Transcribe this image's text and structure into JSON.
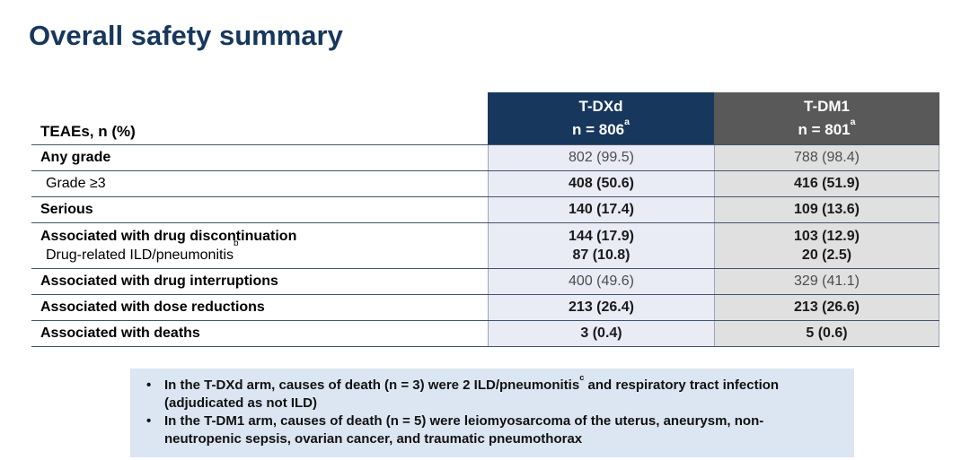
{
  "colors": {
    "navy": "#17375d",
    "header-gray": "#595959",
    "tdxd-bg": "#e9ebf5",
    "tdm1-bg": "#e0e0e0",
    "hline": "#44546a",
    "vline": "#9ba7b8",
    "note-bg": "#dce6f2",
    "note-text": "#111111"
  },
  "page": {
    "title": "Overall safety summary"
  },
  "table": {
    "row_header": "TEAEs, n (%)",
    "columns": [
      {
        "drug": "T-DXd",
        "n": "n = 806",
        "sup": "a"
      },
      {
        "drug": "T-DM1",
        "n": "n = 801",
        "sup": "a"
      }
    ],
    "rows": [
      {
        "label": "Any grade",
        "sup": "",
        "tdxd": "802 (99.5)",
        "tdm1": "788 (98.4)"
      },
      {
        "label": "Grade ≥3",
        "sup": "",
        "tdxd": "408 (50.6)",
        "tdm1": "416 (51.9)"
      },
      {
        "label": "Serious",
        "sup": "",
        "tdxd": "140 (17.4)",
        "tdm1": "109 (13.6)"
      },
      {
        "label": "Associated with drug discontinuation",
        "sup": "",
        "tdxd": "144 (17.9)",
        "tdm1": "103 (12.9)"
      },
      {
        "label": "Drug-related ILD/pneumonitis",
        "sup": "b",
        "tdxd": "87 (10.8)",
        "tdm1": "20 (2.5)"
      },
      {
        "label": "Associated with drug interruptions",
        "sup": "",
        "tdxd": "400 (49.6)",
        "tdm1": "329 (41.1)"
      },
      {
        "label": "Associated with dose reductions",
        "sup": "",
        "tdxd": "213 (26.4)",
        "tdm1": "213 (26.6)"
      },
      {
        "label": "Associated with deaths",
        "sup": "",
        "tdxd": "3 (0.4)",
        "tdm1": "5 (0.6)"
      }
    ]
  },
  "footnotes": {
    "bullet": "•",
    "items": [
      {
        "before": "In the T-DXd arm, causes of death (n = 3) were 2 ILD/pneumonitis",
        "sup": "c",
        "after": " and respiratory tract infection (adjudicated as not ILD)"
      },
      {
        "before": "In the T-DM1 arm, causes of death (n = 5) were leiomyosarcoma of the uterus, aneurysm, non-neutropenic sepsis, ovarian cancer, and traumatic pneumothorax",
        "sup": "",
        "after": ""
      }
    ]
  }
}
